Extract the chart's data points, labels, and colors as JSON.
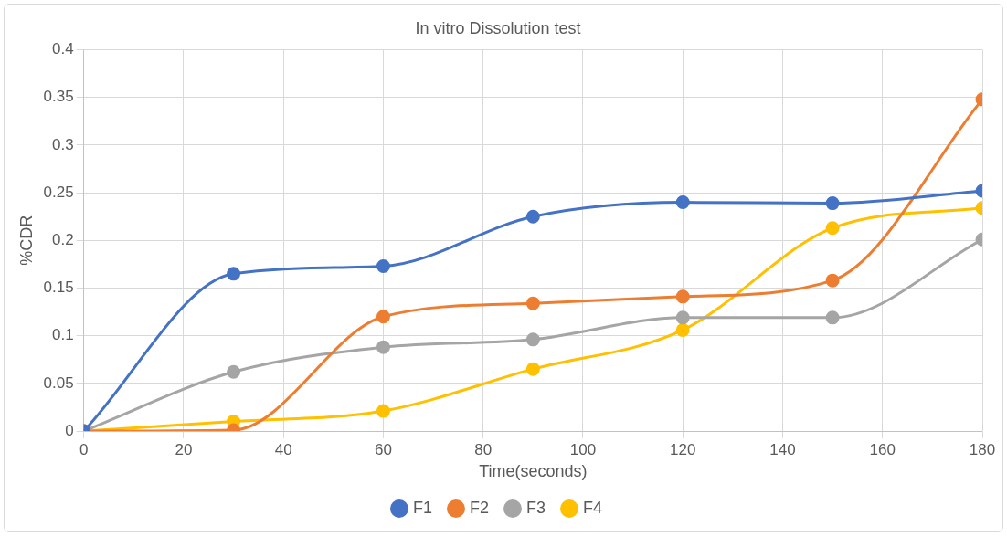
{
  "chart_data": {
    "type": "line",
    "title": "In vitro Dissolution test",
    "xlabel": "Time(seconds)",
    "ylabel": "%CDR",
    "x": [
      0,
      30,
      60,
      90,
      120,
      150,
      180
    ],
    "series": [
      {
        "name": "F1",
        "color": "#4472c4",
        "values": [
          0,
          0.165,
          0.173,
          0.225,
          0.24,
          0.239,
          0.252
        ]
      },
      {
        "name": "F2",
        "color": "#ed7d31",
        "values": [
          0,
          0.001,
          0.12,
          0.134,
          0.141,
          0.158,
          0.348
        ]
      },
      {
        "name": "F3",
        "color": "#a5a5a5",
        "values": [
          0,
          0.062,
          0.088,
          0.096,
          0.119,
          0.119,
          0.201
        ]
      },
      {
        "name": "F4",
        "color": "#ffc000",
        "values": [
          0,
          0.01,
          0.021,
          0.065,
          0.106,
          0.213,
          0.234
        ]
      }
    ],
    "xlim": [
      0,
      180
    ],
    "xticks": [
      0,
      20,
      40,
      60,
      80,
      100,
      120,
      140,
      160,
      180
    ],
    "ylim": [
      0,
      0.4
    ],
    "yticks": [
      0,
      0.05,
      0.1,
      0.15,
      0.2,
      0.25,
      0.3,
      0.35,
      0.4
    ],
    "grid": true,
    "legend": "bottom",
    "marker": "circle",
    "line_style": "solid"
  }
}
